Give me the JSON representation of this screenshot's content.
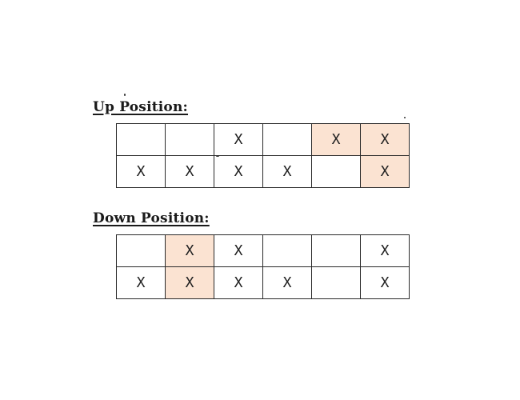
{
  "up_position": {
    "title": "Up Position:",
    "rows": [
      [
        "",
        "",
        "X",
        "",
        "X",
        "X"
      ],
      [
        "X",
        "X",
        "X",
        "X",
        "",
        "X"
      ]
    ],
    "highlighted": [
      [
        0,
        4
      ],
      [
        0,
        5
      ],
      [
        1,
        5
      ]
    ]
  },
  "down_position": {
    "title": "Down Position:",
    "rows": [
      [
        "",
        "X",
        "X",
        "",
        "",
        "X"
      ],
      [
        "X",
        "X",
        "X",
        "X",
        "",
        "X"
      ]
    ],
    "highlighted": [
      [
        0,
        1
      ],
      [
        1,
        1
      ]
    ]
  },
  "colors": {
    "highlight": "#fbe3d2",
    "border": "#2a2a2a",
    "text": "#222222"
  }
}
